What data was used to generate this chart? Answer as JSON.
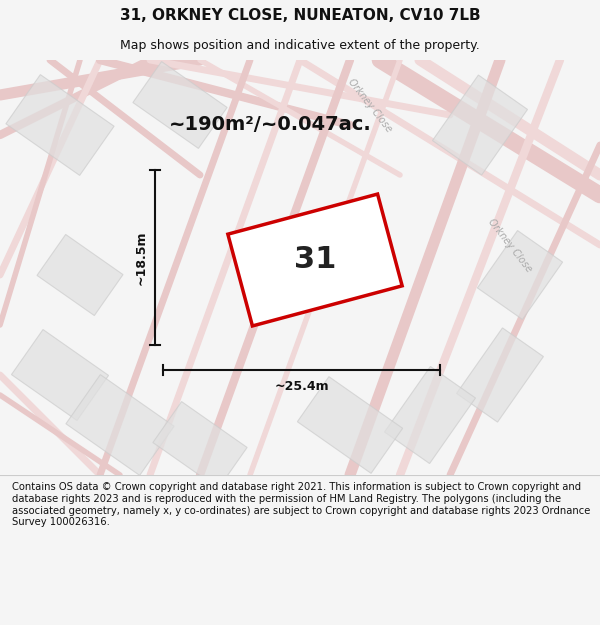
{
  "title": "31, ORKNEY CLOSE, NUNEATON, CV10 7LB",
  "subtitle": "Map shows position and indicative extent of the property.",
  "area_label": "~190m²/~0.047ac.",
  "plot_number": "31",
  "width_label": "~25.4m",
  "height_label": "~18.5m",
  "footer": "Contains OS data © Crown copyright and database right 2021. This information is subject to Crown copyright and database rights 2023 and is reproduced with the permission of HM Land Registry. The polygons (including the associated geometry, namely x, y co-ordinates) are subject to Crown copyright and database rights 2023 Ordnance Survey 100026316.",
  "bg_color": "#f5f5f5",
  "map_bg": "#ffffff",
  "road_color_main": "#e8c8c8",
  "road_color_light": "#f0d8d8",
  "plot_edge_color": "#cc0000",
  "plot_fill_color": "#ffffff",
  "street_label_color": "#aaaaaa",
  "title_color": "#111111",
  "footer_color": "#111111",
  "dim_color": "#111111"
}
